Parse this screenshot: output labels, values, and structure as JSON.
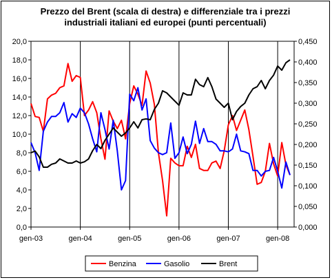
{
  "chart_data": {
    "type": "line",
    "title_lines": [
      "Prezzo del Brent (scala di destra) e differenziale tra i prezzi",
      "industriali italiani ed europei (punti percentuali)"
    ],
    "x_labels": [
      "gen-03",
      "gen-04",
      "gen-05",
      "gen-06",
      "gen-07",
      "gen-08"
    ],
    "x_range_months": [
      0,
      64
    ],
    "y_left": {
      "min": 0,
      "max": 20,
      "step": 2,
      "tick_labels": [
        "0,0",
        "2,0",
        "4,0",
        "6,0",
        "8,0",
        "10,0",
        "12,0",
        "14,0",
        "16,0",
        "18,0",
        "20,0"
      ]
    },
    "y_right": {
      "min": 0,
      "max": 0.45,
      "step": 0.05,
      "tick_labels": [
        "0,000",
        "0,050",
        "0,100",
        "0,150",
        "0,200",
        "0,250",
        "0,300",
        "0,350",
        "0,400",
        "0,450"
      ]
    },
    "grid": "vertical lines at each January",
    "legend_position": "bottom",
    "series": [
      {
        "name": "Benzina",
        "axis": "left",
        "color": "#ff0000",
        "values": [
          13.3,
          11.9,
          11.8,
          10.3,
          13.8,
          14.2,
          14.4,
          15.0,
          15.2,
          17.6,
          15.7,
          16.3,
          16.1,
          12.0,
          12.6,
          13.5,
          12.3,
          9.5,
          7.3,
          12.5,
          11.4,
          10.6,
          11.5,
          9.5,
          13.3,
          15.2,
          14.3,
          13.1,
          16.8,
          15.5,
          13.2,
          8.0,
          5.0,
          1.2,
          7.4,
          6.9,
          6.6,
          6.6,
          8.7,
          7.5,
          8.9,
          6.3,
          6.1,
          6.1,
          6.9,
          7.1,
          6.3,
          8.2,
          11.0,
          12.0,
          10.4,
          11.5,
          12.6,
          10.5,
          7.6,
          4.6,
          4.8,
          6.0,
          9.0,
          6.8,
          5.5,
          9.1,
          6.7,
          5.6
        ]
      },
      {
        "name": "Gasolio",
        "axis": "left",
        "color": "#0000ff",
        "values": [
          9.1,
          8.0,
          6.1,
          10.3,
          11.3,
          11.9,
          11.9,
          12.3,
          13.4,
          11.3,
          12.2,
          11.8,
          12.8,
          12.3,
          11.1,
          9.5,
          8.1,
          12.3,
          10.5,
          8.4,
          11.5,
          8.2,
          4.0,
          5.0,
          14.3,
          13.6,
          15.0,
          12.6,
          13.8,
          9.3,
          8.5,
          8.0,
          7.8,
          8.0,
          11.2,
          7.4,
          8.0,
          9.7,
          7.9,
          8.9,
          11.4,
          9.0,
          10.6,
          9.2,
          9.2,
          8.9,
          8.2,
          8.2,
          8.1,
          8.4,
          10.0,
          8.2,
          8.1,
          7.9,
          6.1,
          6.1,
          5.5,
          6.0,
          6.1,
          7.5,
          6.0,
          4.2,
          7.0,
          5.6
        ]
      },
      {
        "name": "Brent",
        "axis": "right",
        "color": "#000000",
        "values": [
          0.18,
          0.184,
          0.17,
          0.145,
          0.145,
          0.152,
          0.155,
          0.165,
          0.16,
          0.155,
          0.155,
          0.16,
          0.155,
          0.158,
          0.165,
          0.185,
          0.2,
          0.19,
          0.21,
          0.225,
          0.24,
          0.23,
          0.22,
          0.228,
          0.24,
          0.255,
          0.24,
          0.26,
          0.262,
          0.26,
          0.285,
          0.3,
          0.33,
          0.325,
          0.315,
          0.305,
          0.295,
          0.325,
          0.32,
          0.32,
          0.358,
          0.345,
          0.34,
          0.362,
          0.34,
          0.31,
          0.3,
          0.29,
          0.3,
          0.26,
          0.28,
          0.292,
          0.3,
          0.32,
          0.335,
          0.34,
          0.355,
          0.335,
          0.355,
          0.368,
          0.39,
          0.38,
          0.398,
          0.405
        ]
      }
    ]
  }
}
